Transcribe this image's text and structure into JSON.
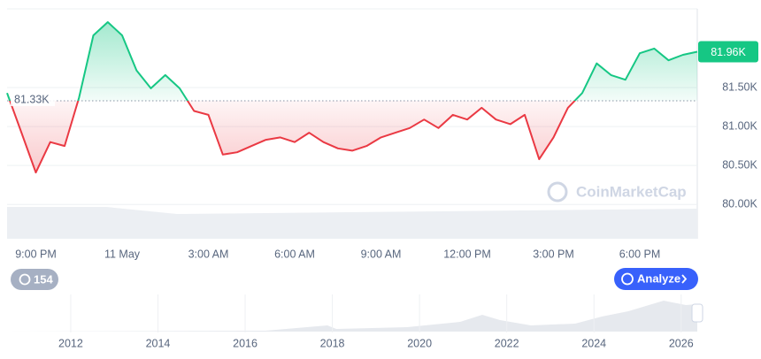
{
  "chart_data": [
    {
      "type": "line",
      "categories": [
        null,
        null,
        "9:00 PM",
        null,
        null,
        null,
        null,
        null,
        "11 May",
        null,
        null,
        null,
        null,
        null,
        "3:00 AM",
        null,
        null,
        null,
        null,
        null,
        "6:00 AM",
        null,
        null,
        null,
        null,
        null,
        "9:00 AM",
        null,
        null,
        null,
        null,
        null,
        "12:00 PM",
        null,
        null,
        null,
        null,
        null,
        "3:00 PM",
        null,
        null,
        null,
        null,
        null,
        "6:00 PM",
        null,
        null,
        null,
        null
      ],
      "values": [
        81430,
        80920,
        80410,
        80800,
        80750,
        81370,
        82170,
        82340,
        82170,
        81720,
        81490,
        81660,
        81490,
        81200,
        81150,
        80640,
        80670,
        80750,
        80830,
        80860,
        80800,
        80920,
        80800,
        80720,
        80690,
        80750,
        80860,
        80920,
        80980,
        81090,
        80980,
        81150,
        81090,
        81240,
        81090,
        81030,
        81150,
        80580,
        80860,
        81240,
        81430,
        81810,
        81660,
        81600,
        81940,
        82000,
        81850,
        81920,
        81960
      ],
      "baseline": {
        "value": 81330,
        "label": "81.33K"
      },
      "current_price": {
        "value": 81960,
        "label": "81.96K"
      },
      "colors": {
        "up": "#16c784",
        "down": "#ea3943"
      },
      "ylim": [
        79560,
        82510
      ],
      "yticks": [
        {
          "value": 80000,
          "label": "80.00K"
        },
        {
          "value": 80500,
          "label": "80.50K"
        },
        {
          "value": 81000,
          "label": "81.00K"
        },
        {
          "value": 81500,
          "label": "81.50K"
        }
      ],
      "grid": true
    },
    {
      "type": "area",
      "xlim": [
        2010.54,
        2026.37
      ],
      "xticks": [
        2012,
        2014,
        2016,
        2018,
        2020,
        2022,
        2024,
        2026
      ]
    }
  ],
  "ui": {
    "alerts_count": 154,
    "analyze_button": "Analyze",
    "watermark": "CoinMarketCap"
  }
}
